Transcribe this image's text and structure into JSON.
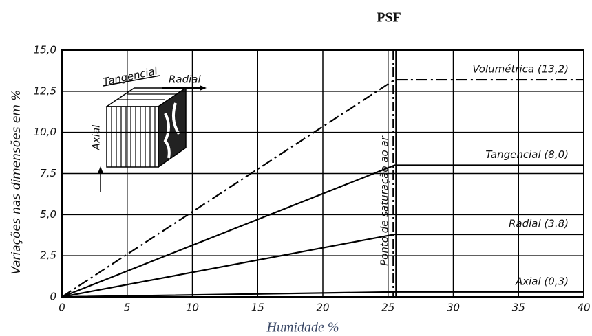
{
  "chart_data": {
    "type": "line",
    "title": "PSF",
    "x_label": "Humidade %",
    "y_label": "Variações nas dimensões em %",
    "x": [
      0,
      25.5,
      40
    ],
    "series": [
      {
        "name": "Volumétrica (13,2)",
        "color": "#000000",
        "style": "dashdot",
        "values": [
          0,
          13.2,
          13.2
        ]
      },
      {
        "name": "Tangencial (8,0)",
        "color": "#000000",
        "style": "solid",
        "values": [
          0,
          8.0,
          8.0
        ]
      },
      {
        "name": "Radial (3.8)",
        "color": "#000000",
        "style": "solid",
        "values": [
          0,
          3.8,
          3.8
        ]
      },
      {
        "name": "Axial (0,3)",
        "color": "#000000",
        "style": "solid",
        "values": [
          0,
          0.3,
          0.3
        ]
      }
    ],
    "xlim": [
      0,
      40
    ],
    "xticks": [
      0,
      5,
      10,
      15,
      20,
      25,
      30,
      35,
      40
    ],
    "ylim": [
      0,
      15
    ],
    "yticks": [
      0,
      {
        "value": 2.5,
        "label": "2,5"
      },
      {
        "value": 5,
        "label": "5,0"
      },
      {
        "value": 7.5,
        "label": "7,5"
      },
      {
        "value": 10,
        "label": "10,0"
      },
      {
        "value": 12.5,
        "label": "12,5"
      },
      {
        "value": 15,
        "label": "15,0"
      }
    ],
    "grid": true,
    "saturation": {
      "text": "Ponto de saturação ao ar",
      "x": 25.5
    },
    "inset": {
      "tangential": "Tangencial",
      "radial": "Radial",
      "axial": "Axial"
    }
  }
}
